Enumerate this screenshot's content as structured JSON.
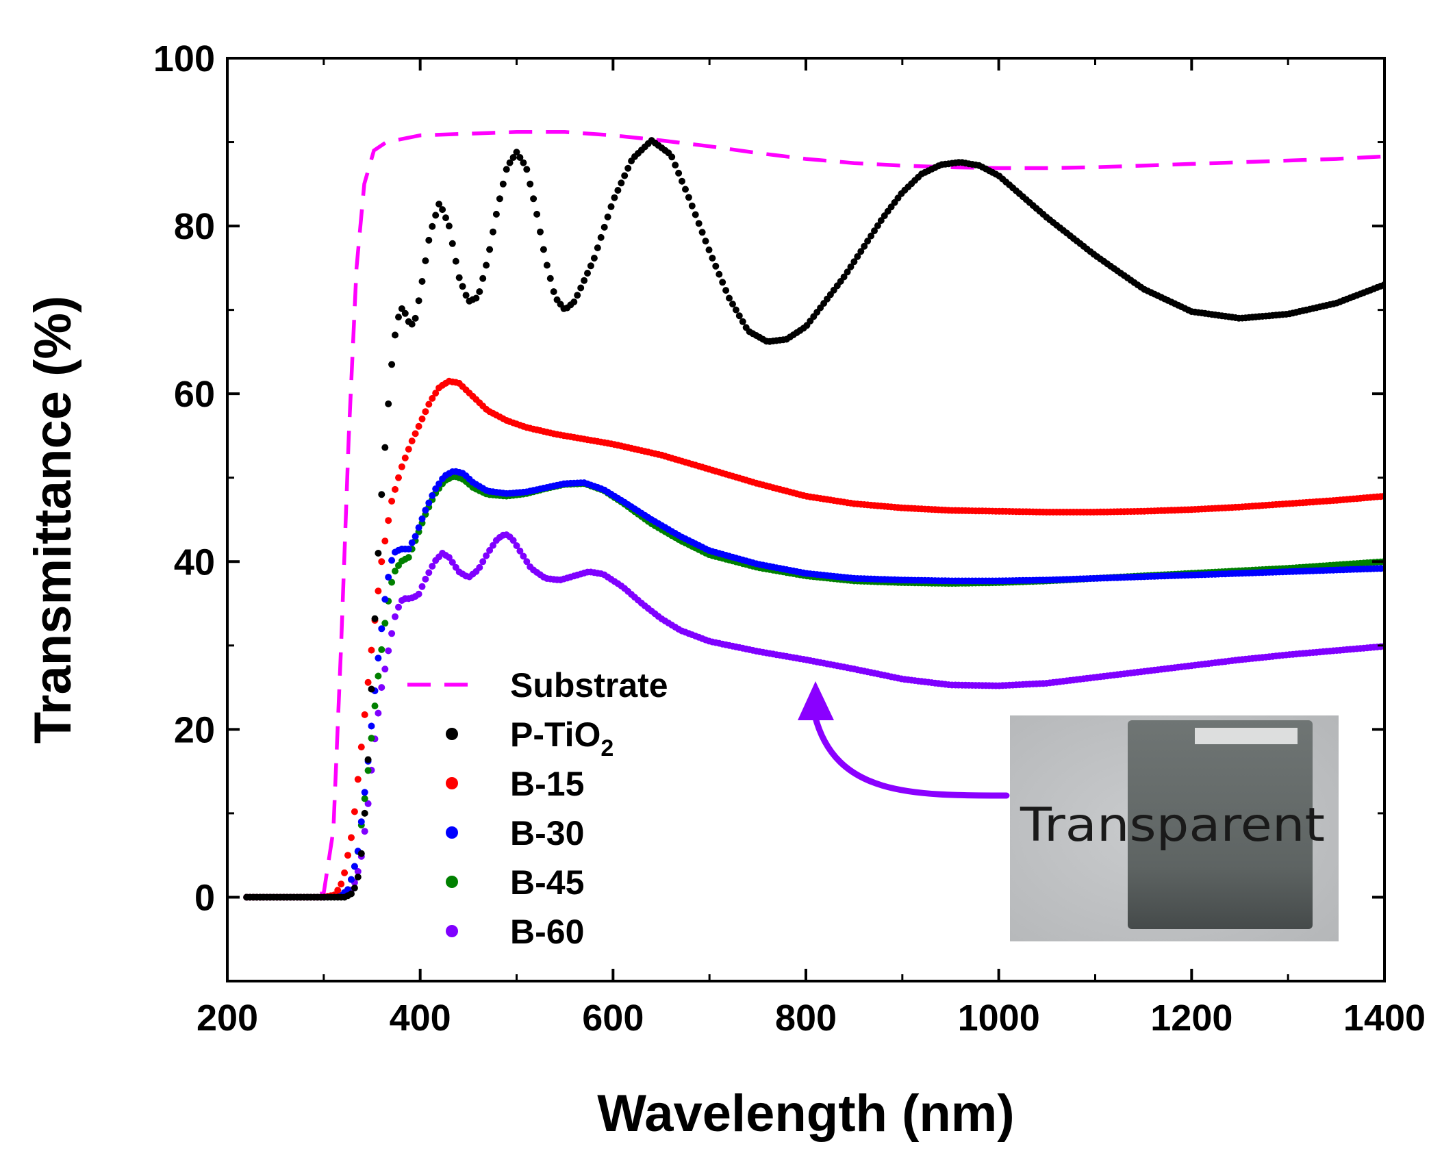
{
  "chart_data": {
    "type": "scatter",
    "title": "",
    "xlabel": "Wavelength (nm)",
    "ylabel": "Transmittance (%)",
    "xlim": [
      200,
      1400
    ],
    "ylim": [
      -10,
      100
    ],
    "x_ticks": [
      200,
      400,
      600,
      800,
      1000,
      1200,
      1400
    ],
    "y_ticks": [
      0,
      20,
      40,
      60,
      80,
      100
    ],
    "grid": false,
    "legend_position": "bottom-left",
    "series": [
      {
        "name": "Substrate",
        "legend_main": "Substrate",
        "legend_sub": "",
        "style": "dashed-line",
        "color": "#ff00ff",
        "points": [
          [
            220,
            0
          ],
          [
            280,
            0
          ],
          [
            300,
            0.5
          ],
          [
            310,
            8
          ],
          [
            318,
            30
          ],
          [
            326,
            55
          ],
          [
            334,
            75
          ],
          [
            342,
            85
          ],
          [
            352,
            89
          ],
          [
            365,
            90
          ],
          [
            400,
            90.8
          ],
          [
            450,
            91
          ],
          [
            500,
            91.2
          ],
          [
            550,
            91.2
          ],
          [
            600,
            90.8
          ],
          [
            650,
            90.2
          ],
          [
            700,
            89.5
          ],
          [
            750,
            88.7
          ],
          [
            800,
            88
          ],
          [
            850,
            87.5
          ],
          [
            900,
            87.2
          ],
          [
            950,
            87
          ],
          [
            1000,
            86.9
          ],
          [
            1050,
            86.9
          ],
          [
            1100,
            87
          ],
          [
            1150,
            87.2
          ],
          [
            1200,
            87.4
          ],
          [
            1250,
            87.6
          ],
          [
            1300,
            87.8
          ],
          [
            1350,
            88
          ],
          [
            1400,
            88.3
          ]
        ]
      },
      {
        "name": "P-TiO2",
        "legend_main": "P-TiO",
        "legend_sub": "2",
        "style": "dots",
        "color": "#000000",
        "points": [
          [
            220,
            0
          ],
          [
            300,
            0
          ],
          [
            322,
            0
          ],
          [
            330,
            0.5
          ],
          [
            335,
            2
          ],
          [
            340,
            6
          ],
          [
            345,
            14
          ],
          [
            350,
            26
          ],
          [
            355,
            38
          ],
          [
            360,
            48
          ],
          [
            365,
            56
          ],
          [
            370,
            63
          ],
          [
            375,
            68
          ],
          [
            380,
            70.3
          ],
          [
            385,
            69.5
          ],
          [
            390,
            68
          ],
          [
            395,
            69
          ],
          [
            400,
            72
          ],
          [
            410,
            79
          ],
          [
            420,
            82.8
          ],
          [
            430,
            80
          ],
          [
            440,
            74
          ],
          [
            450,
            71
          ],
          [
            460,
            71.5
          ],
          [
            470,
            76
          ],
          [
            480,
            82
          ],
          [
            490,
            87
          ],
          [
            500,
            88.8
          ],
          [
            510,
            87
          ],
          [
            520,
            82
          ],
          [
            530,
            76
          ],
          [
            540,
            71.5
          ],
          [
            550,
            70
          ],
          [
            560,
            71
          ],
          [
            580,
            76
          ],
          [
            600,
            83
          ],
          [
            620,
            88
          ],
          [
            640,
            90.2
          ],
          [
            660,
            88.5
          ],
          [
            680,
            83
          ],
          [
            700,
            77
          ],
          [
            720,
            71.5
          ],
          [
            740,
            67.5
          ],
          [
            760,
            66.2
          ],
          [
            780,
            66.5
          ],
          [
            800,
            68
          ],
          [
            820,
            71
          ],
          [
            840,
            74
          ],
          [
            860,
            77.5
          ],
          [
            880,
            81
          ],
          [
            900,
            84
          ],
          [
            920,
            86.2
          ],
          [
            940,
            87.3
          ],
          [
            960,
            87.6
          ],
          [
            980,
            87.2
          ],
          [
            1000,
            86
          ],
          [
            1050,
            81
          ],
          [
            1100,
            76.5
          ],
          [
            1150,
            72.5
          ],
          [
            1200,
            69.8
          ],
          [
            1250,
            69
          ],
          [
            1300,
            69.5
          ],
          [
            1350,
            70.8
          ],
          [
            1400,
            73
          ]
        ]
      },
      {
        "name": "B-15",
        "legend_main": "B-15",
        "legend_sub": "",
        "style": "dots",
        "color": "#ff0000",
        "points": [
          [
            220,
            0
          ],
          [
            300,
            0
          ],
          [
            312,
            0.3
          ],
          [
            320,
            2
          ],
          [
            330,
            8
          ],
          [
            340,
            19
          ],
          [
            350,
            30
          ],
          [
            360,
            40
          ],
          [
            370,
            47
          ],
          [
            380,
            51
          ],
          [
            390,
            54
          ],
          [
            400,
            56.5
          ],
          [
            410,
            59
          ],
          [
            420,
            60.8
          ],
          [
            430,
            61.5
          ],
          [
            440,
            61.3
          ],
          [
            450,
            60.2
          ],
          [
            470,
            58
          ],
          [
            490,
            56.8
          ],
          [
            510,
            56
          ],
          [
            540,
            55.2
          ],
          [
            570,
            54.6
          ],
          [
            600,
            54
          ],
          [
            650,
            52.7
          ],
          [
            700,
            51
          ],
          [
            750,
            49.3
          ],
          [
            800,
            47.8
          ],
          [
            850,
            46.9
          ],
          [
            900,
            46.4
          ],
          [
            950,
            46.1
          ],
          [
            1000,
            46
          ],
          [
            1050,
            45.9
          ],
          [
            1100,
            45.9
          ],
          [
            1150,
            46
          ],
          [
            1200,
            46.2
          ],
          [
            1250,
            46.5
          ],
          [
            1300,
            46.9
          ],
          [
            1350,
            47.3
          ],
          [
            1400,
            47.8
          ]
        ]
      },
      {
        "name": "B-30",
        "legend_main": "B-30",
        "legend_sub": "",
        "style": "dots",
        "color": "#0000ff",
        "points": [
          [
            220,
            0
          ],
          [
            300,
            0
          ],
          [
            318,
            0.2
          ],
          [
            326,
            1
          ],
          [
            335,
            5
          ],
          [
            345,
            15
          ],
          [
            355,
            27
          ],
          [
            365,
            37
          ],
          [
            372,
            41
          ],
          [
            380,
            41.5
          ],
          [
            388,
            41.5
          ],
          [
            395,
            43
          ],
          [
            405,
            46
          ],
          [
            415,
            48.5
          ],
          [
            425,
            50.2
          ],
          [
            435,
            50.8
          ],
          [
            445,
            50.5
          ],
          [
            455,
            49.4
          ],
          [
            470,
            48.4
          ],
          [
            490,
            48.1
          ],
          [
            510,
            48.3
          ],
          [
            530,
            48.8
          ],
          [
            550,
            49.3
          ],
          [
            570,
            49.4
          ],
          [
            590,
            48.6
          ],
          [
            610,
            47.2
          ],
          [
            640,
            45
          ],
          [
            670,
            43
          ],
          [
            700,
            41.3
          ],
          [
            750,
            39.7
          ],
          [
            800,
            38.6
          ],
          [
            850,
            38
          ],
          [
            900,
            37.8
          ],
          [
            950,
            37.7
          ],
          [
            1000,
            37.7
          ],
          [
            1050,
            37.8
          ],
          [
            1100,
            38
          ],
          [
            1150,
            38.2
          ],
          [
            1200,
            38.4
          ],
          [
            1250,
            38.6
          ],
          [
            1300,
            38.8
          ],
          [
            1350,
            39
          ],
          [
            1400,
            39.2
          ]
        ]
      },
      {
        "name": "B-45",
        "legend_main": "B-45",
        "legend_sub": "",
        "style": "dots",
        "color": "#008000",
        "points": [
          [
            220,
            0
          ],
          [
            300,
            0
          ],
          [
            318,
            0.2
          ],
          [
            326,
            1
          ],
          [
            335,
            5
          ],
          [
            345,
            14
          ],
          [
            355,
            25
          ],
          [
            365,
            34
          ],
          [
            372,
            38.5
          ],
          [
            380,
            40
          ],
          [
            388,
            40.5
          ],
          [
            395,
            42.5
          ],
          [
            405,
            45.5
          ],
          [
            415,
            48
          ],
          [
            425,
            49.6
          ],
          [
            435,
            50.2
          ],
          [
            445,
            49.8
          ],
          [
            455,
            48.8
          ],
          [
            470,
            48
          ],
          [
            490,
            47.8
          ],
          [
            510,
            48.1
          ],
          [
            530,
            48.7
          ],
          [
            550,
            49.2
          ],
          [
            570,
            49.3
          ],
          [
            590,
            48.5
          ],
          [
            610,
            47
          ],
          [
            640,
            44.5
          ],
          [
            670,
            42.5
          ],
          [
            700,
            40.8
          ],
          [
            750,
            39.3
          ],
          [
            800,
            38.3
          ],
          [
            850,
            37.7
          ],
          [
            900,
            37.5
          ],
          [
            950,
            37.4
          ],
          [
            1000,
            37.5
          ],
          [
            1050,
            37.7
          ],
          [
            1100,
            38
          ],
          [
            1150,
            38.3
          ],
          [
            1200,
            38.6
          ],
          [
            1250,
            38.9
          ],
          [
            1300,
            39.2
          ],
          [
            1350,
            39.6
          ],
          [
            1400,
            40
          ]
        ]
      },
      {
        "name": "B-60",
        "legend_main": "B-60",
        "legend_sub": "",
        "style": "dots",
        "color": "#7f00ff",
        "points": [
          [
            220,
            0
          ],
          [
            300,
            0
          ],
          [
            322,
            0.2
          ],
          [
            330,
            1
          ],
          [
            338,
            4
          ],
          [
            345,
            10
          ],
          [
            352,
            18
          ],
          [
            360,
            25
          ],
          [
            368,
            30
          ],
          [
            375,
            34
          ],
          [
            382,
            35.6
          ],
          [
            390,
            35.6
          ],
          [
            398,
            36
          ],
          [
            405,
            37.8
          ],
          [
            415,
            40
          ],
          [
            423,
            41
          ],
          [
            430,
            40.5
          ],
          [
            440,
            38.8
          ],
          [
            450,
            38.1
          ],
          [
            460,
            39
          ],
          [
            470,
            41
          ],
          [
            480,
            42.7
          ],
          [
            488,
            43.3
          ],
          [
            495,
            42.8
          ],
          [
            505,
            41
          ],
          [
            515,
            39.2
          ],
          [
            530,
            38
          ],
          [
            545,
            37.8
          ],
          [
            560,
            38.3
          ],
          [
            575,
            38.8
          ],
          [
            590,
            38.5
          ],
          [
            610,
            37
          ],
          [
            630,
            35
          ],
          [
            650,
            33.2
          ],
          [
            670,
            31.8
          ],
          [
            700,
            30.5
          ],
          [
            750,
            29.3
          ],
          [
            800,
            28.3
          ],
          [
            850,
            27.2
          ],
          [
            900,
            26
          ],
          [
            950,
            25.3
          ],
          [
            1000,
            25.2
          ],
          [
            1050,
            25.5
          ],
          [
            1100,
            26.2
          ],
          [
            1150,
            26.9
          ],
          [
            1200,
            27.6
          ],
          [
            1250,
            28.3
          ],
          [
            1300,
            28.9
          ],
          [
            1350,
            29.4
          ],
          [
            1400,
            29.9
          ]
        ]
      }
    ],
    "annotation": {
      "inset_label": "Transparent",
      "arrow_target_x": 800,
      "arrow_target_y": 25.5,
      "arrow_color": "#8a00ff"
    }
  }
}
